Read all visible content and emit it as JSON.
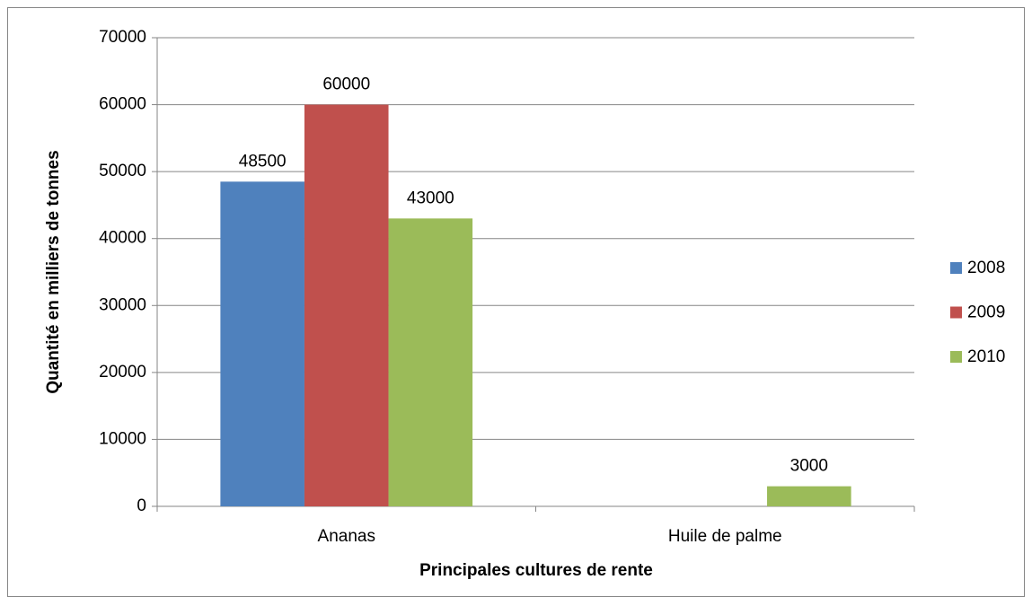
{
  "chart_data": {
    "type": "bar",
    "x_label": "Principales cultures de rente",
    "y_label": "Quantité en milliers de tonnes",
    "categories": [
      "Ananas",
      "Huile de palme"
    ],
    "series": [
      {
        "name": "2008",
        "color": "#4f81bd",
        "values": [
          48500,
          null
        ]
      },
      {
        "name": "2009",
        "color": "#c0504d",
        "values": [
          60000,
          null
        ]
      },
      {
        "name": "2010",
        "color": "#9bbb59",
        "values": [
          43000,
          3000
        ]
      }
    ],
    "ylim": [
      0,
      70000
    ],
    "yticks": [
      0,
      10000,
      20000,
      30000,
      40000,
      50000,
      60000,
      70000
    ],
    "grid": true,
    "legend": "right"
  }
}
